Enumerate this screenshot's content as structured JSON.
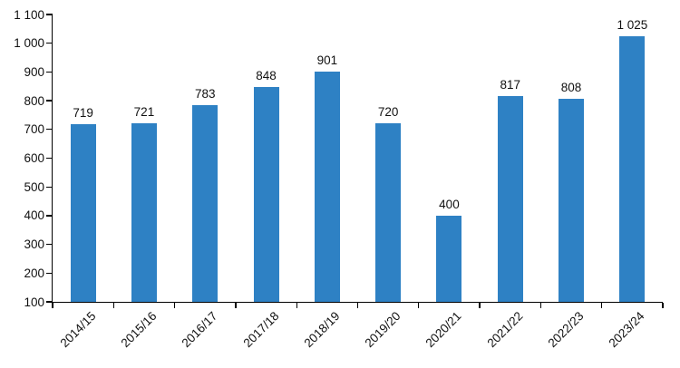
{
  "chart_data": {
    "type": "bar",
    "title": "",
    "xlabel": "",
    "ylabel": "",
    "categories": [
      "2014/15",
      "2015/16",
      "2016/17",
      "2017/18",
      "2018/19",
      "2019/20",
      "2020/21",
      "2021/22",
      "2022/23",
      "2023/24"
    ],
    "values": [
      719,
      721,
      783,
      848,
      901,
      720,
      400,
      817,
      808,
      1025
    ],
    "data_labels": [
      "719",
      "721",
      "783",
      "848",
      "901",
      "720",
      "400",
      "817",
      "808",
      "1 025"
    ],
    "ylim": [
      100,
      1100
    ],
    "ytick_step": 100,
    "ytick_labels": [
      "100",
      "200",
      "300",
      "400",
      "500",
      "600",
      "700",
      "800",
      "900",
      "1 000",
      "1 100"
    ],
    "grid": false,
    "legend": "none",
    "colors": {
      "bar": "#2E81C4",
      "axis": "#000000",
      "text": "#111111",
      "background": "#FFFFFF"
    }
  }
}
